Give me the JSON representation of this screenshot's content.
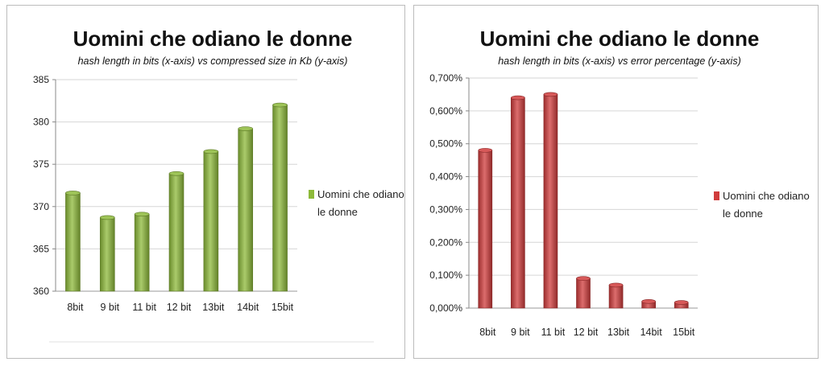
{
  "chart_data": [
    {
      "type": "bar",
      "title": "Uomini che odiano le donne",
      "subtitle": "hash length in bits (x-axis) vs compressed size in Kb (y-axis)",
      "categories": [
        "8bit",
        "9 bit",
        "11 bit",
        "12 bit",
        "13bit",
        "14bit",
        "15bit"
      ],
      "series": [
        {
          "name": "Uomini che odiano le donne",
          "values": [
            371.6,
            368.7,
            369.1,
            373.9,
            376.5,
            379.2,
            382.0
          ]
        }
      ],
      "ylim": [
        360,
        385
      ],
      "yticks": [
        360,
        365,
        370,
        375,
        380,
        385
      ],
      "ytick_labels": [
        "360",
        "365",
        "370",
        "375",
        "380",
        "385"
      ],
      "grid": true,
      "legend": "right",
      "legend_lines": [
        "Uomini che odiano",
        "le donne"
      ],
      "color": "#8dba3a"
    },
    {
      "type": "bar",
      "title": "Uomini che odiano le donne",
      "subtitle": "hash length in bits (x-axis) vs error percentage (y-axis)",
      "categories": [
        "8bit",
        "9 bit",
        "11 bit",
        "12 bit",
        "13bit",
        "14bit",
        "15bit"
      ],
      "series": [
        {
          "name": "Uomini che odiano le donne",
          "values": [
            0.48,
            0.64,
            0.65,
            0.09,
            0.07,
            0.02,
            0.017
          ]
        }
      ],
      "ylim": [
        0,
        0.7
      ],
      "yticks": [
        0,
        0.1,
        0.2,
        0.3,
        0.4,
        0.5,
        0.6,
        0.7
      ],
      "ytick_labels": [
        "0,000%",
        "0,100%",
        "0,200%",
        "0,300%",
        "0,400%",
        "0,500%",
        "0,600%",
        "0,700%"
      ],
      "grid": true,
      "legend": "right",
      "legend_lines": [
        "Uomini che odiano",
        "le donne"
      ],
      "color": "#d03c3c"
    }
  ]
}
